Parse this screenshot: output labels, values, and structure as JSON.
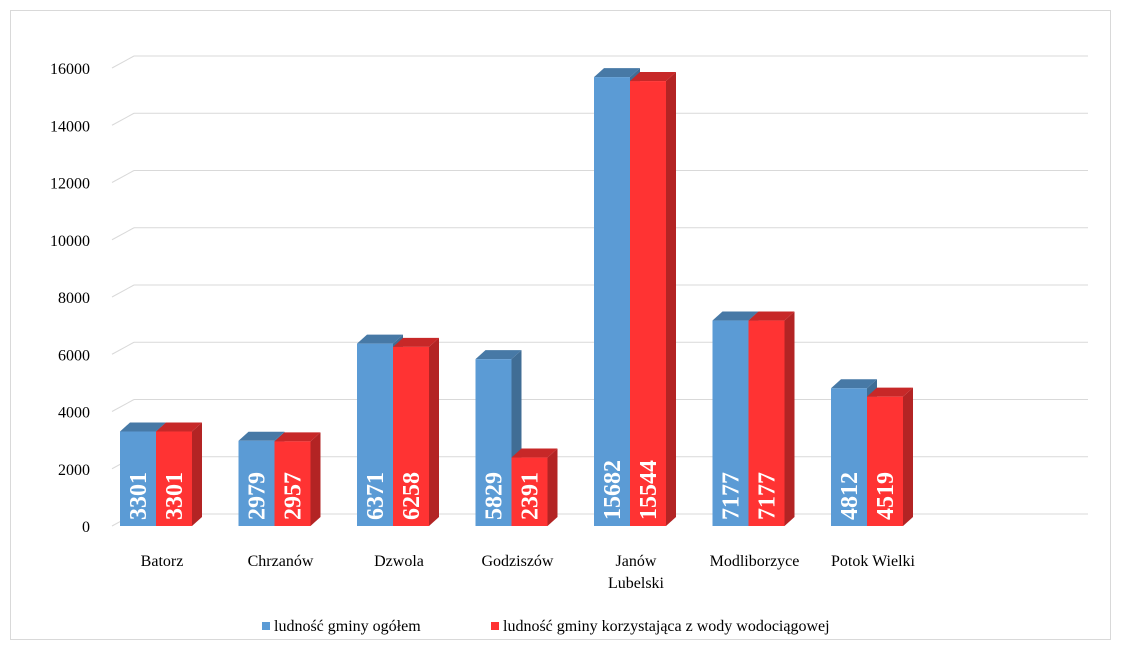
{
  "chart_data": {
    "type": "bar",
    "style": "3d-clustered-column",
    "categories": [
      "Batorz",
      "Chrzanów",
      "Dzwola",
      "Godziszów",
      "Janów Lubelski",
      "Modliborzyce",
      "Potok Wielki"
    ],
    "category_lines": [
      [
        "Batorz"
      ],
      [
        "Chrzanów"
      ],
      [
        "Dzwola"
      ],
      [
        "Godziszów"
      ],
      [
        "Janów",
        "Lubelski"
      ],
      [
        "Modliborzyce"
      ],
      [
        "Potok Wielki"
      ]
    ],
    "series": [
      {
        "name": "ludność gminy ogółem",
        "color": "#5B9BD5",
        "values": [
          3301,
          2979,
          6371,
          5829,
          15682,
          7177,
          4812
        ]
      },
      {
        "name": "ludność gminy korzystająca z wody wodociągowej",
        "color": "#FF3333",
        "values": [
          3301,
          2957,
          6258,
          2391,
          15544,
          7177,
          4519
        ]
      }
    ],
    "y_ticks": [
      0,
      2000,
      4000,
      6000,
      8000,
      10000,
      12000,
      14000,
      16000
    ],
    "ylim": [
      0,
      16000
    ],
    "grid": true,
    "data_labels": true,
    "legend_position": "bottom"
  }
}
